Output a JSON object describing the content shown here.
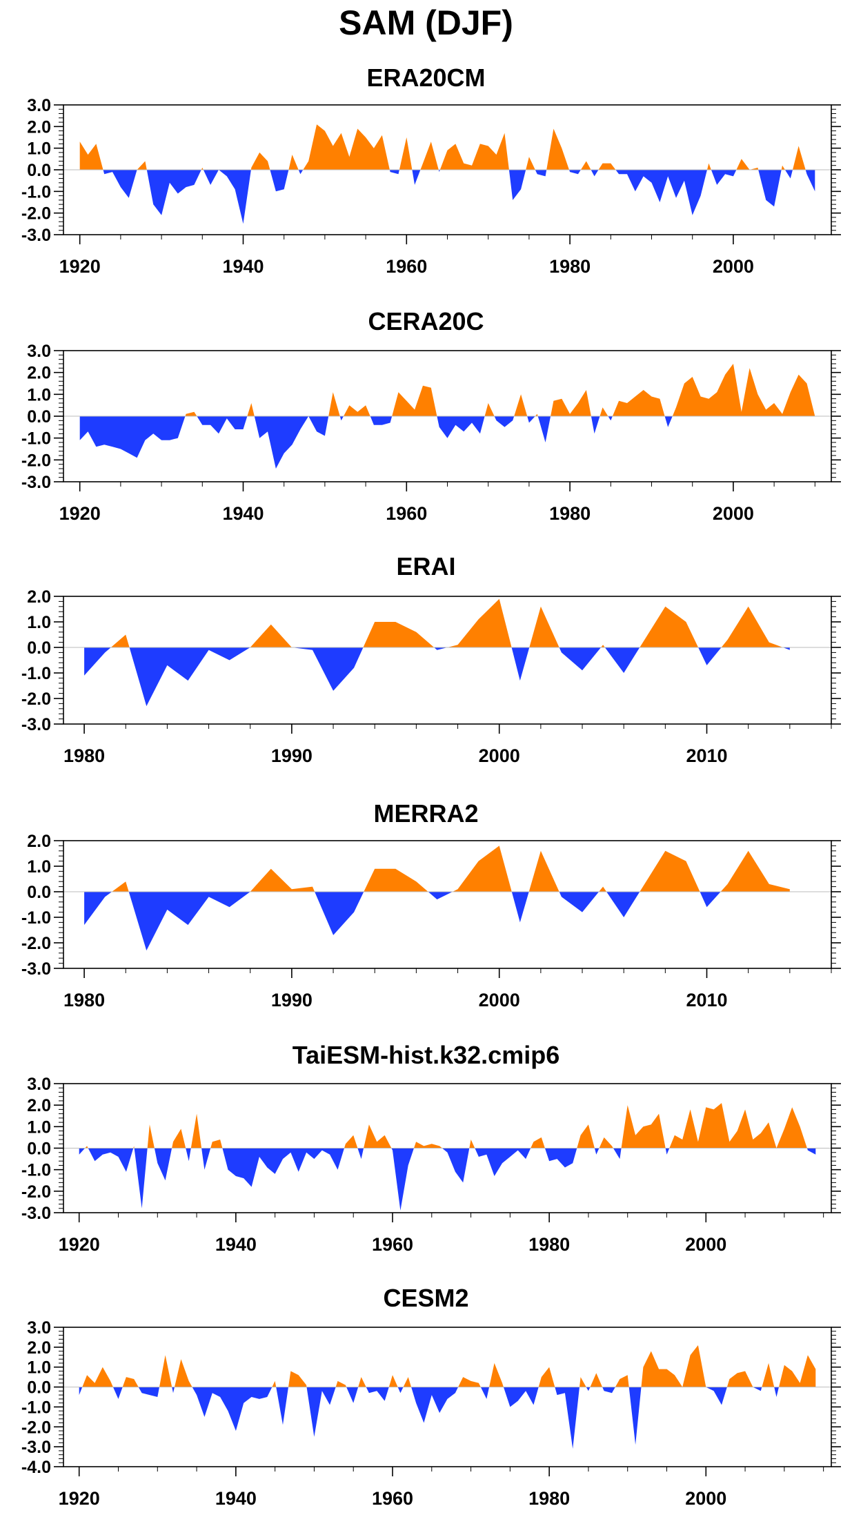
{
  "figure_title": "SAM (DJF)",
  "colors": {
    "positive": "#ff8000",
    "negative": "#1e3cff",
    "axis": "#000000",
    "zero_line": "#bbbbbb"
  },
  "chart_data": [
    {
      "type": "area",
      "title": "ERA20CM",
      "xlim": [
        1918,
        2012
      ],
      "ylim": [
        -3,
        3
      ],
      "xticks": [
        1920,
        1940,
        1960,
        1980,
        2000
      ],
      "yticks": [
        3,
        2,
        1,
        0,
        -1,
        -2,
        -3
      ],
      "ytick_labels": [
        "3.0",
        "2.0",
        "1.0",
        "0.0",
        "-1.0",
        "-2.0",
        "-3.0"
      ],
      "x": [
        1920,
        1921,
        1922,
        1923,
        1924,
        1925,
        1926,
        1927,
        1928,
        1929,
        1930,
        1931,
        1932,
        1933,
        1934,
        1935,
        1936,
        1937,
        1938,
        1939,
        1940,
        1941,
        1942,
        1943,
        1944,
        1945,
        1946,
        1947,
        1948,
        1949,
        1950,
        1951,
        1952,
        1953,
        1954,
        1955,
        1956,
        1957,
        1958,
        1959,
        1960,
        1961,
        1962,
        1963,
        1964,
        1965,
        1966,
        1967,
        1968,
        1969,
        1970,
        1971,
        1972,
        1973,
        1974,
        1975,
        1976,
        1977,
        1978,
        1979,
        1980,
        1981,
        1982,
        1983,
        1984,
        1985,
        1986,
        1987,
        1988,
        1989,
        1990,
        1991,
        1992,
        1993,
        1994,
        1995,
        1996,
        1997,
        1998,
        1999,
        2000,
        2001,
        2002,
        2003,
        2004,
        2005,
        2006,
        2007,
        2008,
        2009,
        2010
      ],
      "y": [
        1.3,
        0.7,
        1.2,
        -0.2,
        -0.1,
        -0.8,
        -1.3,
        0.0,
        0.4,
        -1.6,
        -2.1,
        -0.6,
        -1.1,
        -0.8,
        -0.7,
        0.1,
        -0.7,
        0.0,
        -0.3,
        -0.9,
        -2.5,
        0.1,
        0.8,
        0.4,
        -1.0,
        -0.9,
        0.7,
        -0.2,
        0.4,
        2.1,
        1.8,
        1.1,
        1.7,
        0.6,
        1.9,
        1.5,
        1.0,
        1.6,
        -0.1,
        -0.2,
        1.5,
        -0.7,
        0.3,
        1.3,
        -0.1,
        0.9,
        1.2,
        0.3,
        0.2,
        1.2,
        1.1,
        0.7,
        1.7,
        -1.4,
        -0.9,
        0.6,
        -0.2,
        -0.3,
        1.9,
        1.0,
        -0.1,
        -0.2,
        0.4,
        -0.3,
        0.3,
        0.3,
        -0.2,
        -0.2,
        -1.0,
        -0.3,
        -0.6,
        -1.5,
        -0.3,
        -1.3,
        -0.5,
        -2.1,
        -1.2,
        0.3,
        -0.7,
        -0.2,
        -0.3,
        0.5,
        0.0,
        0.1,
        -1.4,
        -1.7,
        0.2,
        -0.4,
        1.1,
        -0.2,
        -1.0
      ]
    },
    {
      "type": "area",
      "title": "CERA20C",
      "xlim": [
        1918,
        2012
      ],
      "ylim": [
        -3,
        3
      ],
      "xticks": [
        1920,
        1940,
        1960,
        1980,
        2000
      ],
      "yticks": [
        3,
        2,
        1,
        0,
        -1,
        -2,
        -3
      ],
      "ytick_labels": [
        "3.0",
        "2.0",
        "1.0",
        "0.0",
        "-1.0",
        "-2.0",
        "-3.0"
      ],
      "x": [
        1920,
        1921,
        1922,
        1923,
        1924,
        1925,
        1926,
        1927,
        1928,
        1929,
        1930,
        1931,
        1932,
        1933,
        1934,
        1935,
        1936,
        1937,
        1938,
        1939,
        1940,
        1941,
        1942,
        1943,
        1944,
        1945,
        1946,
        1947,
        1948,
        1949,
        1950,
        1951,
        1952,
        1953,
        1954,
        1955,
        1956,
        1957,
        1958,
        1959,
        1960,
        1961,
        1962,
        1963,
        1964,
        1965,
        1966,
        1967,
        1968,
        1969,
        1970,
        1971,
        1972,
        1973,
        1974,
        1975,
        1976,
        1977,
        1978,
        1979,
        1980,
        1981,
        1982,
        1983,
        1984,
        1985,
        1986,
        1987,
        1988,
        1989,
        1990,
        1991,
        1992,
        1993,
        1994,
        1995,
        1996,
        1997,
        1998,
        1999,
        2000,
        2001,
        2002,
        2003,
        2004,
        2005,
        2006,
        2007,
        2008,
        2009,
        2010
      ],
      "y": [
        -1.1,
        -0.7,
        -1.4,
        -1.3,
        -1.4,
        -1.5,
        -1.7,
        -1.9,
        -1.1,
        -0.8,
        -1.1,
        -1.1,
        -1.0,
        0.1,
        0.2,
        -0.4,
        -0.4,
        -0.8,
        -0.1,
        -0.6,
        -0.6,
        0.6,
        -1.0,
        -0.7,
        -2.4,
        -1.7,
        -1.3,
        -0.6,
        0.0,
        -0.7,
        -0.9,
        1.1,
        -0.2,
        0.5,
        0.2,
        0.5,
        -0.4,
        -0.4,
        -0.3,
        1.1,
        0.7,
        0.3,
        1.4,
        1.3,
        -0.5,
        -1.0,
        -0.4,
        -0.7,
        -0.3,
        -0.8,
        0.6,
        -0.2,
        -0.5,
        -0.2,
        1.0,
        -0.3,
        0.1,
        -1.2,
        0.7,
        0.8,
        0.1,
        0.6,
        1.2,
        -0.8,
        0.4,
        -0.2,
        0.7,
        0.6,
        0.9,
        1.2,
        0.9,
        0.8,
        -0.5,
        0.4,
        1.5,
        1.8,
        0.9,
        0.8,
        1.1,
        1.9,
        2.4,
        0.2,
        2.2,
        1.0,
        0.3,
        0.6,
        0.1,
        1.1,
        1.9,
        1.5,
        0.0
      ]
    },
    {
      "type": "area",
      "title": "ERAI",
      "xlim": [
        1979,
        2016
      ],
      "ylim": [
        -3,
        2
      ],
      "xticks": [
        1980,
        1990,
        2000,
        2010
      ],
      "yticks": [
        2,
        1,
        0,
        -1,
        -2,
        -3
      ],
      "ytick_labels": [
        "2.0",
        "1.0",
        "0.0",
        "-1.0",
        "-2.0",
        "-3.0"
      ],
      "x": [
        1980,
        1981,
        1982,
        1983,
        1984,
        1985,
        1986,
        1987,
        1988,
        1989,
        1990,
        1991,
        1992,
        1993,
        1994,
        1995,
        1996,
        1997,
        1998,
        1999,
        2000,
        2001,
        2002,
        2003,
        2004,
        2005,
        2006,
        2007,
        2008,
        2009,
        2010,
        2011,
        2012,
        2013,
        2014
      ],
      "y": [
        -1.1,
        -0.2,
        0.5,
        -2.3,
        -0.7,
        -1.3,
        -0.1,
        -0.5,
        0.0,
        0.9,
        0.0,
        -0.1,
        -1.7,
        -0.8,
        1.0,
        1.0,
        0.6,
        -0.1,
        0.1,
        1.1,
        1.9,
        -1.3,
        1.6,
        -0.2,
        -0.9,
        0.1,
        -1.0,
        0.3,
        1.6,
        1.0,
        -0.7,
        0.3,
        1.6,
        0.2,
        -0.1
      ]
    },
    {
      "type": "area",
      "title": "MERRA2",
      "xlim": [
        1979,
        2016
      ],
      "ylim": [
        -3,
        2
      ],
      "xticks": [
        1980,
        1990,
        2000,
        2010
      ],
      "yticks": [
        2,
        1,
        0,
        -1,
        -2,
        -3
      ],
      "ytick_labels": [
        "2.0",
        "1.0",
        "0.0",
        "-1.0",
        "-2.0",
        "-3.0"
      ],
      "x": [
        1980,
        1981,
        1982,
        1983,
        1984,
        1985,
        1986,
        1987,
        1988,
        1989,
        1990,
        1991,
        1992,
        1993,
        1994,
        1995,
        1996,
        1997,
        1998,
        1999,
        2000,
        2001,
        2002,
        2003,
        2004,
        2005,
        2006,
        2007,
        2008,
        2009,
        2010,
        2011,
        2012,
        2013,
        2014
      ],
      "y": [
        -1.3,
        -0.2,
        0.4,
        -2.3,
        -0.7,
        -1.3,
        -0.2,
        -0.6,
        0.0,
        0.9,
        0.1,
        0.2,
        -1.7,
        -0.8,
        0.9,
        0.9,
        0.4,
        -0.3,
        0.1,
        1.2,
        1.8,
        -1.2,
        1.6,
        -0.2,
        -0.8,
        0.2,
        -1.0,
        0.3,
        1.6,
        1.2,
        -0.6,
        0.3,
        1.6,
        0.3,
        0.1
      ]
    },
    {
      "type": "area",
      "title": "TaiESM-hist.k32.cmip6",
      "xlim": [
        1918,
        2016
      ],
      "ylim": [
        -3,
        3
      ],
      "xticks": [
        1920,
        1940,
        1960,
        1980,
        2000
      ],
      "yticks": [
        3,
        2,
        1,
        0,
        -1,
        -2,
        -3
      ],
      "ytick_labels": [
        "3.0",
        "2.0",
        "1.0",
        "0.0",
        "-1.0",
        "-2.0",
        "-3.0"
      ],
      "x": [
        1920,
        1921,
        1922,
        1923,
        1924,
        1925,
        1926,
        1927,
        1928,
        1929,
        1930,
        1931,
        1932,
        1933,
        1934,
        1935,
        1936,
        1937,
        1938,
        1939,
        1940,
        1941,
        1942,
        1943,
        1944,
        1945,
        1946,
        1947,
        1948,
        1949,
        1950,
        1951,
        1952,
        1953,
        1954,
        1955,
        1956,
        1957,
        1958,
        1959,
        1960,
        1961,
        1962,
        1963,
        1964,
        1965,
        1966,
        1967,
        1968,
        1969,
        1970,
        1971,
        1972,
        1973,
        1974,
        1975,
        1976,
        1977,
        1978,
        1979,
        1980,
        1981,
        1982,
        1983,
        1984,
        1985,
        1986,
        1987,
        1988,
        1989,
        1990,
        1991,
        1992,
        1993,
        1994,
        1995,
        1996,
        1997,
        1998,
        1999,
        2000,
        2001,
        2002,
        2003,
        2004,
        2005,
        2006,
        2007,
        2008,
        2009,
        2010,
        2011,
        2012,
        2013,
        2014
      ],
      "y": [
        -0.3,
        0.1,
        -0.6,
        -0.3,
        -0.2,
        -0.4,
        -1.1,
        0.1,
        -2.8,
        1.1,
        -0.7,
        -1.5,
        0.3,
        0.9,
        -0.6,
        1.6,
        -1.0,
        0.3,
        0.4,
        -1.0,
        -1.3,
        -1.4,
        -1.8,
        -0.4,
        -0.9,
        -1.2,
        -0.5,
        -0.2,
        -1.1,
        -0.2,
        -0.5,
        -0.1,
        -0.3,
        -1.0,
        0.2,
        0.6,
        -0.5,
        1.1,
        0.3,
        0.6,
        -0.1,
        -2.9,
        -0.8,
        0.3,
        0.1,
        0.2,
        0.1,
        -0.2,
        -1.1,
        -1.6,
        0.4,
        -0.4,
        -0.3,
        -1.3,
        -0.7,
        -0.4,
        -0.1,
        -0.5,
        0.3,
        0.5,
        -0.6,
        -0.5,
        -0.9,
        -0.7,
        0.6,
        1.1,
        -0.3,
        0.5,
        0.1,
        -0.5,
        2.0,
        0.6,
        1.0,
        1.1,
        1.6,
        -0.3,
        0.6,
        0.4,
        1.8,
        0.3,
        1.9,
        1.8,
        2.1,
        0.3,
        0.8,
        1.8,
        0.4,
        0.7,
        1.2,
        0.0,
        0.9,
        1.9,
        1.0,
        -0.1,
        -0.3
      ]
    },
    {
      "type": "area",
      "title": "CESM2",
      "xlim": [
        1918,
        2016
      ],
      "ylim": [
        -4,
        3
      ],
      "xticks": [
        1920,
        1940,
        1960,
        1980,
        2000
      ],
      "yticks": [
        3,
        2,
        1,
        0,
        -1,
        -2,
        -3,
        -4
      ],
      "ytick_labels": [
        "3.0",
        "2.0",
        "1.0",
        "0.0",
        "-1.0",
        "-2.0",
        "-3.0",
        "-4.0"
      ],
      "x": [
        1920,
        1921,
        1922,
        1923,
        1924,
        1925,
        1926,
        1927,
        1928,
        1929,
        1930,
        1931,
        1932,
        1933,
        1934,
        1935,
        1936,
        1937,
        1938,
        1939,
        1940,
        1941,
        1942,
        1943,
        1944,
        1945,
        1946,
        1947,
        1948,
        1949,
        1950,
        1951,
        1952,
        1953,
        1954,
        1955,
        1956,
        1957,
        1958,
        1959,
        1960,
        1961,
        1962,
        1963,
        1964,
        1965,
        1966,
        1967,
        1968,
        1969,
        1970,
        1971,
        1972,
        1973,
        1974,
        1975,
        1976,
        1977,
        1978,
        1979,
        1980,
        1981,
        1982,
        1983,
        1984,
        1985,
        1986,
        1987,
        1988,
        1989,
        1990,
        1991,
        1992,
        1993,
        1994,
        1995,
        1996,
        1997,
        1998,
        1999,
        2000,
        2001,
        2002,
        2003,
        2004,
        2005,
        2006,
        2007,
        2008,
        2009,
        2010,
        2011,
        2012,
        2013,
        2014
      ],
      "y": [
        -0.4,
        0.6,
        0.2,
        1.0,
        0.3,
        -0.6,
        0.5,
        0.4,
        -0.3,
        -0.4,
        -0.5,
        1.6,
        -0.3,
        1.4,
        0.3,
        -0.4,
        -1.5,
        -0.3,
        -0.5,
        -1.2,
        -2.2,
        -0.8,
        -0.5,
        -0.6,
        -0.5,
        0.3,
        -1.9,
        0.8,
        0.6,
        0.1,
        -2.5,
        -0.2,
        -0.9,
        0.3,
        0.1,
        -0.8,
        0.5,
        -0.3,
        -0.2,
        -0.7,
        0.6,
        -0.3,
        0.5,
        -0.8,
        -1.8,
        -0.4,
        -1.3,
        -0.6,
        -0.3,
        0.5,
        0.3,
        0.2,
        -0.6,
        1.2,
        0.2,
        -1.0,
        -0.7,
        -0.2,
        -0.9,
        0.5,
        1.0,
        -0.4,
        -0.3,
        -3.1,
        0.5,
        -0.2,
        0.7,
        -0.2,
        -0.3,
        0.4,
        0.6,
        -2.9,
        1.0,
        1.8,
        0.9,
        0.9,
        0.6,
        0.0,
        1.6,
        2.1,
        0.0,
        -0.2,
        -0.9,
        0.4,
        0.7,
        0.8,
        0.0,
        -0.2,
        1.2,
        -0.5,
        1.1,
        0.8,
        0.2,
        1.6,
        0.9
      ]
    }
  ]
}
